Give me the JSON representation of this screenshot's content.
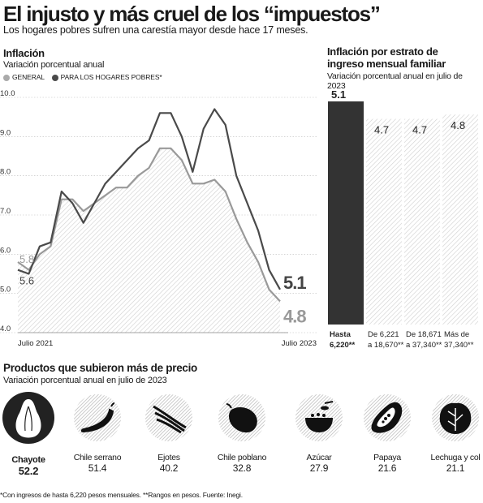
{
  "headline": "El injusto y más cruel de los “impuestos”",
  "subheadline": "Los hogares pobres sufren una carestía mayor desde hace 17 meses.",
  "colors": {
    "general": "#999999",
    "poor": "#4a4a4a",
    "dark_bar": "#333333"
  },
  "line_chart": {
    "title": "Inflación",
    "subtitle": "Variación porcentual anual",
    "legend": {
      "general": "GENERAL",
      "poor": "PARA LOS HOGARES POBRES*"
    }
  },
  "bar_chart": {
    "title_line1": "Inflación por estrato de",
    "title_line2": "ingreso mensual familiar",
    "subtitle": "Variación porcentual anual en julio de 2023"
  },
  "chart_data": [
    {
      "type": "line",
      "title": "Inflación",
      "subtitle": "Variación porcentual anual",
      "ylim": [
        4.0,
        10.0
      ],
      "yticks": [
        "10.0",
        "9.0",
        "8.0",
        "7.0",
        "6.0",
        "5.0",
        "4.0"
      ],
      "x_labels": [
        "Julio 2021",
        "Julio 2023"
      ],
      "x": [
        "2021-07",
        "2021-08",
        "2021-09",
        "2021-10",
        "2021-11",
        "2021-12",
        "2022-01",
        "2022-02",
        "2022-03",
        "2022-04",
        "2022-05",
        "2022-06",
        "2022-07",
        "2022-08",
        "2022-09",
        "2022-10",
        "2022-11",
        "2022-12",
        "2023-01",
        "2023-02",
        "2023-03",
        "2023-04",
        "2023-05",
        "2023-06",
        "2023-07"
      ],
      "series": [
        {
          "name": "GENERAL",
          "start_label": "5.8",
          "end_label": "4.8",
          "values": [
            5.8,
            5.6,
            6.0,
            6.2,
            7.4,
            7.4,
            7.1,
            7.3,
            7.5,
            7.7,
            7.7,
            8.0,
            8.2,
            8.7,
            8.7,
            8.4,
            7.8,
            7.8,
            7.9,
            7.6,
            6.9,
            6.3,
            5.8,
            5.1,
            4.8
          ]
        },
        {
          "name": "PARA LOS HOGARES POBRES*",
          "start_label": "5.6",
          "end_label": "5.1",
          "values": [
            5.6,
            5.5,
            6.2,
            6.3,
            7.6,
            7.3,
            6.8,
            7.3,
            7.8,
            8.1,
            8.4,
            8.7,
            8.9,
            9.6,
            9.6,
            9.0,
            8.1,
            9.2,
            9.7,
            9.3,
            8.0,
            7.3,
            6.6,
            5.6,
            5.1
          ]
        }
      ],
      "grid": true
    },
    {
      "type": "bar",
      "title": "Inflación por estrato de ingreso mensual familiar",
      "subtitle": "Variación porcentual anual en julio de 2023",
      "ylim": [
        0,
        5.1
      ],
      "categories": [
        [
          "Hasta",
          "6,220**"
        ],
        [
          "De 6,221",
          "a 18,670**"
        ],
        [
          "De 18,671",
          "a 37,340**"
        ],
        [
          "Más de",
          "37,340**"
        ]
      ],
      "values": [
        5.1,
        4.7,
        4.7,
        4.8
      ],
      "value_labels": [
        "5.1",
        "4.7",
        "4.7",
        "4.8"
      ]
    }
  ],
  "products": {
    "title": "Productos que subieron más de precio",
    "subtitle": "Variación porcentual anual en julio de 2023",
    "items": [
      {
        "name": "Chayote",
        "value": "52.2",
        "icon": "chayote-icon"
      },
      {
        "name": "Chile serrano",
        "value": "51.4",
        "icon": "chile-serrano-icon"
      },
      {
        "name": "Ejotes",
        "value": "40.2",
        "icon": "ejotes-icon"
      },
      {
        "name": "Chile poblano",
        "value": "32.8",
        "icon": "chile-poblano-icon"
      },
      {
        "name": "Azúcar",
        "value": "27.9",
        "icon": "sugar-bowl-icon"
      },
      {
        "name": "Papaya",
        "value": "21.6",
        "icon": "papaya-icon"
      },
      {
        "name": "Lechuga y col",
        "value": "21.1",
        "icon": "lettuce-icon"
      }
    ]
  },
  "footnote": "*Con ingresos de hasta 6,220 pesos mensuales. **Rangos en pesos. Fuente: Inegi."
}
